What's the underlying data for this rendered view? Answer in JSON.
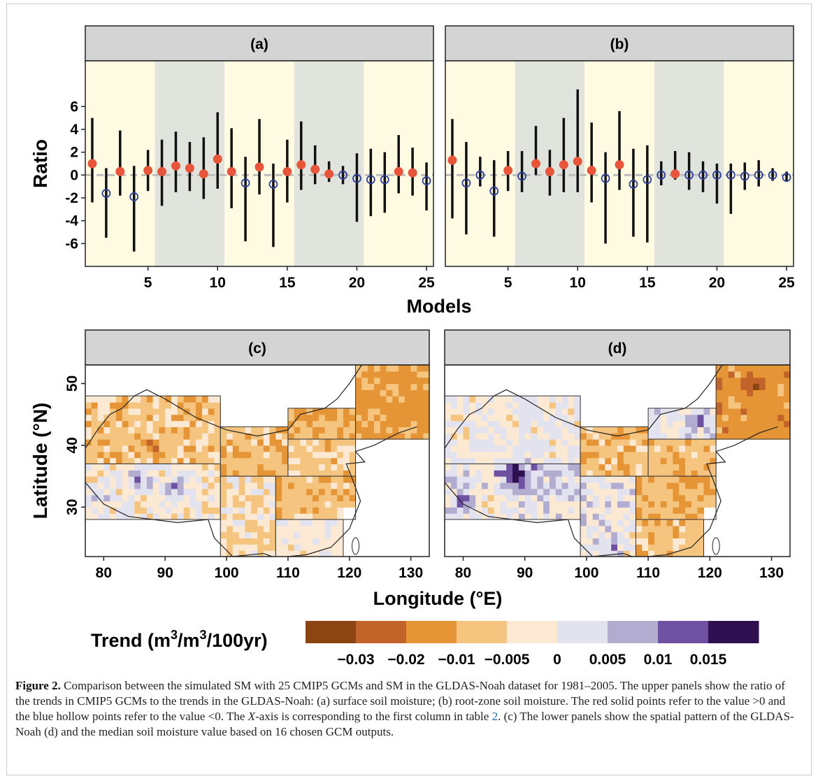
{
  "colors": {
    "positive": "#e8553a",
    "negative": "#2d3e9a",
    "whisker": "#111111",
    "band_yellow": "#fffbe3",
    "band_gray": "#e1e3dd",
    "strip": "#d4d4d4",
    "zero_line": "#bdbdbd",
    "ocean": "#ffffff"
  },
  "chart_data": [
    {
      "type": "scatter",
      "panel": "(a)",
      "x": [
        1,
        2,
        3,
        4,
        5,
        6,
        7,
        8,
        9,
        10,
        11,
        12,
        13,
        14,
        15,
        16,
        17,
        18,
        19,
        20,
        21,
        22,
        23,
        24,
        25
      ],
      "y": [
        1.0,
        -1.6,
        0.3,
        -1.9,
        0.4,
        0.3,
        0.8,
        0.6,
        0.1,
        1.4,
        0.3,
        -0.7,
        0.7,
        -0.8,
        0.3,
        0.9,
        0.5,
        0.1,
        0.0,
        -0.3,
        -0.4,
        -0.4,
        0.3,
        0.2,
        -0.5
      ],
      "ymin": [
        -2.4,
        -5.5,
        -1.8,
        -6.7,
        -1.4,
        -2.7,
        -1.5,
        -1.4,
        -2.1,
        -1.2,
        -2.9,
        -5.8,
        -1.7,
        -6.3,
        -2.4,
        -1.3,
        -0.8,
        -0.6,
        -0.8,
        -4.1,
        -3.6,
        -3.3,
        -1.6,
        -1.8,
        -3.1
      ],
      "ymax": [
        5.0,
        0.6,
        3.9,
        0.8,
        2.2,
        3.1,
        3.8,
        2.9,
        3.3,
        5.5,
        4.1,
        1.6,
        4.9,
        1.0,
        3.1,
        4.7,
        2.6,
        1.2,
        0.8,
        1.9,
        2.3,
        2.0,
        3.5,
        2.4,
        1.1
      ],
      "ylabel": "Ratio",
      "xlabel": "Models",
      "xticks": [
        "5",
        "10",
        "15",
        "20",
        "25"
      ],
      "yticks": [
        "6",
        "4",
        "2",
        "0",
        "-2",
        "-4",
        "-6"
      ],
      "ylim": [
        -8,
        10
      ],
      "xlim": [
        0.5,
        25.5
      ]
    },
    {
      "type": "scatter",
      "panel": "(b)",
      "x": [
        1,
        2,
        3,
        4,
        5,
        6,
        7,
        8,
        9,
        10,
        11,
        12,
        13,
        14,
        15,
        16,
        17,
        18,
        19,
        20,
        21,
        22,
        23,
        24,
        25
      ],
      "y": [
        1.3,
        -0.7,
        0.0,
        -1.4,
        0.4,
        -0.1,
        1.0,
        0.3,
        0.9,
        1.2,
        0.4,
        -0.3,
        0.9,
        -0.8,
        -0.4,
        0.0,
        0.1,
        0.0,
        0.0,
        0.0,
        0.0,
        -0.1,
        0.0,
        0.0,
        -0.2
      ],
      "ymin": [
        -3.8,
        -5.2,
        -1.0,
        -5.4,
        -1.4,
        -1.5,
        0.0,
        -1.8,
        -1.5,
        -1.5,
        -2.4,
        -6.0,
        -1.3,
        -5.4,
        -5.9,
        -0.9,
        -0.4,
        -1.3,
        -1.5,
        -2.5,
        -3.4,
        -1.3,
        -1.0,
        -0.5,
        -0.6
      ],
      "ymax": [
        4.9,
        2.9,
        1.6,
        1.3,
        2.1,
        2.1,
        4.3,
        2.2,
        5.0,
        7.5,
        4.6,
        2.0,
        5.6,
        2.3,
        2.6,
        1.2,
        2.1,
        2.0,
        1.2,
        1.0,
        1.0,
        1.1,
        1.3,
        0.6,
        0.3
      ],
      "ylabel": "Ratio",
      "xlabel": "Models",
      "xticks": [
        "5",
        "10",
        "15",
        "20",
        "25"
      ],
      "ylim": [
        -8,
        10
      ],
      "xlim": [
        0.5,
        25.5
      ]
    },
    {
      "type": "heatmap",
      "panel": "(c)",
      "xlabel": "Longitude (°E)",
      "ylabel": "Latitude (°N)",
      "xticks": [
        "80",
        "90",
        "100",
        "110",
        "120",
        "130"
      ],
      "yticks": [
        "50",
        "40",
        "30"
      ],
      "xlim": [
        77,
        133
      ],
      "ylim": [
        22,
        53
      ],
      "seed": 11,
      "regions": [
        {
          "lon0": 77,
          "lon1": 99,
          "lat0": 37,
          "lat1": 48,
          "mean": -0.9,
          "var": 1.0
        },
        {
          "lon0": 77,
          "lon1": 99,
          "lat0": 28,
          "lat1": 37,
          "mean": 0.2,
          "var": 1.2
        },
        {
          "lon0": 99,
          "lon1": 110,
          "lat0": 35,
          "lat1": 43,
          "mean": -1.2,
          "var": 0.8
        },
        {
          "lon0": 110,
          "lon1": 121,
          "lat0": 41,
          "lat1": 46,
          "mean": -1.6,
          "var": 0.6
        },
        {
          "lon0": 110,
          "lon1": 121,
          "lat0": 35,
          "lat1": 41,
          "mean": -0.9,
          "var": 0.8
        },
        {
          "lon0": 121,
          "lon1": 133,
          "lat0": 41,
          "lat1": 53,
          "mean": -1.8,
          "var": 0.6
        },
        {
          "lon0": 99,
          "lon1": 108,
          "lat0": 22,
          "lat1": 35,
          "mean": -0.3,
          "var": 1.2
        },
        {
          "lon0": 108,
          "lon1": 121,
          "lat0": 28,
          "lat1": 35,
          "mean": -1.1,
          "var": 0.7
        },
        {
          "lon0": 108,
          "lon1": 119,
          "lat0": 22,
          "lat1": 28,
          "mean": 0.1,
          "var": 0.7
        }
      ],
      "hotspots": [
        {
          "lon": 86,
          "lat": 34.5,
          "r": 3.5,
          "v": 2.2
        },
        {
          "lon": 92,
          "lat": 33.5,
          "r": 3.0,
          "v": 1.8
        },
        {
          "lon": 79,
          "lat": 31.5,
          "r": 2.0,
          "v": 1.5
        },
        {
          "lon": 88,
          "lat": 40,
          "r": 2.5,
          "v": -1.2
        }
      ]
    },
    {
      "type": "heatmap",
      "panel": "(d)",
      "xlabel": "Longitude (°E)",
      "xticks": [
        "80",
        "90",
        "100",
        "110",
        "120",
        "130"
      ],
      "xlim": [
        77,
        133
      ],
      "ylim": [
        22,
        53
      ],
      "seed": 29,
      "regions": [
        {
          "lon0": 77,
          "lon1": 99,
          "lat0": 37,
          "lat1": 48,
          "mean": 0.4,
          "var": 1.0
        },
        {
          "lon0": 77,
          "lon1": 99,
          "lat0": 28,
          "lat1": 37,
          "mean": 0.8,
          "var": 1.2
        },
        {
          "lon0": 99,
          "lon1": 110,
          "lat0": 35,
          "lat1": 43,
          "mean": -1.1,
          "var": 0.8
        },
        {
          "lon0": 110,
          "lon1": 121,
          "lat0": 41,
          "lat1": 46,
          "mean": 0.9,
          "var": 0.8
        },
        {
          "lon0": 110,
          "lon1": 121,
          "lat0": 35,
          "lat1": 41,
          "mean": -1.0,
          "var": 0.8
        },
        {
          "lon0": 121,
          "lon1": 133,
          "lat0": 41,
          "lat1": 53,
          "mean": -2.0,
          "var": 0.6
        },
        {
          "lon0": 99,
          "lon1": 108,
          "lat0": 22,
          "lat1": 35,
          "mean": 0.6,
          "var": 1.2
        },
        {
          "lon0": 108,
          "lon1": 121,
          "lat0": 28,
          "lat1": 35,
          "mean": -1.3,
          "var": 0.7
        },
        {
          "lon0": 108,
          "lon1": 119,
          "lat0": 22,
          "lat1": 28,
          "mean": -0.9,
          "var": 0.8
        }
      ],
      "hotspots": [
        {
          "lon": 89,
          "lat": 35,
          "r": 4.5,
          "v": 3.2
        },
        {
          "lon": 80,
          "lat": 31,
          "r": 2.5,
          "v": 2.2
        },
        {
          "lon": 85,
          "lat": 30.5,
          "r": 2.5,
          "v": -2.0
        },
        {
          "lon": 104,
          "lat": 24,
          "r": 2.5,
          "v": 1.8
        },
        {
          "lon": 118,
          "lat": 44,
          "r": 2.0,
          "v": 2.2
        },
        {
          "lon": 127,
          "lat": 50,
          "r": 2.5,
          "v": -1.5
        }
      ]
    }
  ],
  "legend": {
    "title_main": "Trend (m",
    "title_sup1": "3",
    "title_mid": "/m",
    "title_sup2": "3",
    "title_end": "/100yr)",
    "colors": [
      "#8b4513",
      "#c2632a",
      "#e59536",
      "#f5c57f",
      "#fbe9d4",
      "#e3e3ef",
      "#b2acd1",
      "#6e52a1",
      "#2e0f4f"
    ],
    "labels": [
      "−0.03",
      "−0.02",
      "−0.01",
      "−0.005",
      "0",
      "0.005",
      "0.01",
      "0.015"
    ]
  },
  "caption": {
    "label": "Figure 2.",
    "p1": " Comparison between the simulated SM with 25 CMIP5 GCMs and SM in the GLDAS-Noah dataset for 1981–2005. The upper panels show the ratio of the trends in CMIP5 GCMs to the trends in the GLDAS-Noah: (a) surface soil moisture; (b) root-zone soil moisture. The red solid points refer to the value >0 and the blue hollow points refer to the value <0. The ",
    "x_italic": "X",
    "p2": "-axis is corresponding to the first column in table ",
    "table_ref": "2",
    "p3": ". (c) The lower panels show the spatial pattern of the GLDAS-Noah (d) and the median soil moisture value based on 16 chosen GCM outputs."
  }
}
